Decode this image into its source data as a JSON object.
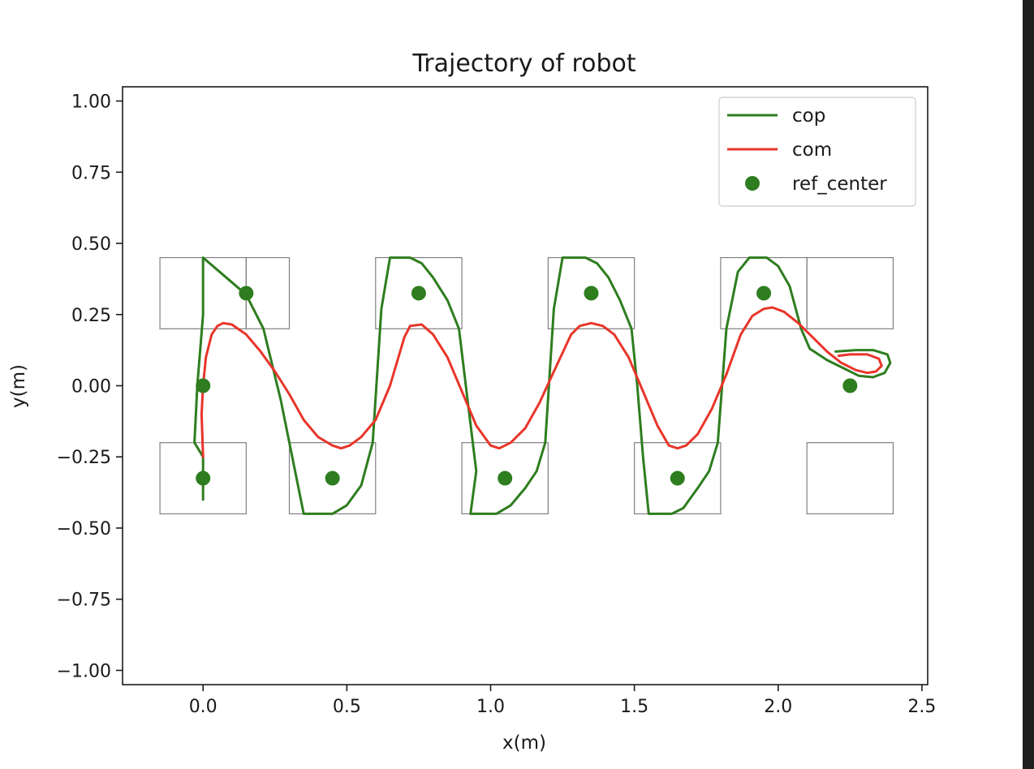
{
  "chart_data": {
    "type": "line",
    "title": "Trajectory of robot",
    "xlabel": "x(m)",
    "ylabel": "y(m)",
    "xlim": [
      -0.28,
      2.52
    ],
    "ylim": [
      -1.05,
      1.05
    ],
    "xticks": [
      0.0,
      0.5,
      1.0,
      1.5,
      2.0,
      2.5
    ],
    "xtick_labels": [
      "0.0",
      "0.5",
      "1.0",
      "1.5",
      "2.0",
      "2.5"
    ],
    "yticks": [
      1.0,
      0.75,
      0.5,
      0.25,
      0.0,
      -0.25,
      -0.5,
      -0.75,
      -1.0
    ],
    "ytick_labels": [
      "1.00",
      "0.75",
      "0.50",
      "0.25",
      "0.00",
      "−0.25",
      "−0.50",
      "−0.75",
      "−1.00"
    ],
    "grid": false,
    "legend_position": "top-right",
    "colors": {
      "cop": "#2e7d1f",
      "com": "#e8352a",
      "ref_center": "#2e7d1f",
      "footprint": "#808080"
    },
    "footprints": [
      {
        "x0": -0.15,
        "x1": 0.15,
        "y0": 0.2,
        "y1": 0.45
      },
      {
        "x0": 0.15,
        "x1": 0.3,
        "y0": 0.2,
        "y1": 0.45
      },
      {
        "x0": -0.15,
        "x1": 0.15,
        "y0": -0.45,
        "y1": -0.2
      },
      {
        "x0": 0.3,
        "x1": 0.6,
        "y0": -0.45,
        "y1": -0.2
      },
      {
        "x0": 0.6,
        "x1": 0.9,
        "y0": 0.2,
        "y1": 0.45
      },
      {
        "x0": 0.9,
        "x1": 1.2,
        "y0": -0.45,
        "y1": -0.2
      },
      {
        "x0": 1.2,
        "x1": 1.5,
        "y0": 0.2,
        "y1": 0.45
      },
      {
        "x0": 1.5,
        "x1": 1.8,
        "y0": -0.45,
        "y1": -0.2
      },
      {
        "x0": 1.8,
        "x1": 2.1,
        "y0": 0.2,
        "y1": 0.45
      },
      {
        "x0": 2.1,
        "x1": 2.4,
        "y0": 0.2,
        "y1": 0.45
      },
      {
        "x0": 2.1,
        "x1": 2.4,
        "y0": -0.45,
        "y1": -0.2
      }
    ],
    "series": [
      {
        "name": "cop",
        "style": "line",
        "points": [
          [
            0.0,
            -0.4
          ],
          [
            0.0,
            -0.25
          ],
          [
            -0.03,
            -0.2
          ],
          [
            -0.02,
            0.0
          ],
          [
            0.0,
            0.25
          ],
          [
            0.0,
            0.45
          ],
          [
            0.15,
            0.32
          ],
          [
            0.21,
            0.2
          ],
          [
            0.27,
            -0.05
          ],
          [
            0.32,
            -0.3
          ],
          [
            0.35,
            -0.45
          ],
          [
            0.45,
            -0.45
          ],
          [
            0.5,
            -0.42
          ],
          [
            0.55,
            -0.35
          ],
          [
            0.59,
            -0.2
          ],
          [
            0.62,
            0.27
          ],
          [
            0.65,
            0.45
          ],
          [
            0.72,
            0.45
          ],
          [
            0.76,
            0.43
          ],
          [
            0.8,
            0.38
          ],
          [
            0.85,
            0.3
          ],
          [
            0.89,
            0.2
          ],
          [
            0.92,
            -0.05
          ],
          [
            0.95,
            -0.3
          ],
          [
            0.93,
            -0.45
          ],
          [
            1.02,
            -0.45
          ],
          [
            1.07,
            -0.42
          ],
          [
            1.12,
            -0.36
          ],
          [
            1.16,
            -0.3
          ],
          [
            1.19,
            -0.2
          ],
          [
            1.22,
            0.27
          ],
          [
            1.25,
            0.45
          ],
          [
            1.33,
            0.45
          ],
          [
            1.37,
            0.43
          ],
          [
            1.41,
            0.38
          ],
          [
            1.45,
            0.3
          ],
          [
            1.49,
            0.2
          ],
          [
            1.51,
            0.0
          ],
          [
            1.53,
            -0.25
          ],
          [
            1.55,
            -0.45
          ],
          [
            1.63,
            -0.45
          ],
          [
            1.67,
            -0.43
          ],
          [
            1.72,
            -0.36
          ],
          [
            1.76,
            -0.3
          ],
          [
            1.79,
            -0.2
          ],
          [
            1.82,
            0.2
          ],
          [
            1.86,
            0.4
          ],
          [
            1.9,
            0.45
          ],
          [
            1.96,
            0.45
          ],
          [
            2.0,
            0.42
          ],
          [
            2.04,
            0.35
          ],
          [
            2.08,
            0.2
          ],
          [
            2.11,
            0.13
          ],
          [
            2.17,
            0.09
          ],
          [
            2.23,
            0.06
          ],
          [
            2.28,
            0.035
          ],
          [
            2.33,
            0.03
          ],
          [
            2.37,
            0.045
          ],
          [
            2.39,
            0.08
          ],
          [
            2.38,
            0.11
          ],
          [
            2.33,
            0.125
          ],
          [
            2.27,
            0.125
          ],
          [
            2.2,
            0.12
          ]
        ]
      },
      {
        "name": "com",
        "style": "line",
        "points": [
          [
            0.0,
            -0.25
          ],
          [
            -0.005,
            -0.1
          ],
          [
            0.0,
            0.0
          ],
          [
            0.01,
            0.1
          ],
          [
            0.03,
            0.18
          ],
          [
            0.05,
            0.21
          ],
          [
            0.07,
            0.22
          ],
          [
            0.1,
            0.215
          ],
          [
            0.15,
            0.18
          ],
          [
            0.2,
            0.12
          ],
          [
            0.25,
            0.05
          ],
          [
            0.3,
            -0.03
          ],
          [
            0.35,
            -0.12
          ],
          [
            0.4,
            -0.18
          ],
          [
            0.45,
            -0.21
          ],
          [
            0.48,
            -0.22
          ],
          [
            0.51,
            -0.21
          ],
          [
            0.55,
            -0.18
          ],
          [
            0.6,
            -0.12
          ],
          [
            0.65,
            0.0
          ],
          [
            0.7,
            0.17
          ],
          [
            0.72,
            0.21
          ],
          [
            0.76,
            0.215
          ],
          [
            0.8,
            0.18
          ],
          [
            0.85,
            0.1
          ],
          [
            0.9,
            -0.02
          ],
          [
            0.95,
            -0.14
          ],
          [
            1.0,
            -0.21
          ],
          [
            1.03,
            -0.22
          ],
          [
            1.07,
            -0.2
          ],
          [
            1.12,
            -0.15
          ],
          [
            1.17,
            -0.06
          ],
          [
            1.22,
            0.05
          ],
          [
            1.28,
            0.18
          ],
          [
            1.31,
            0.21
          ],
          [
            1.35,
            0.22
          ],
          [
            1.39,
            0.21
          ],
          [
            1.43,
            0.18
          ],
          [
            1.48,
            0.1
          ],
          [
            1.53,
            -0.02
          ],
          [
            1.58,
            -0.14
          ],
          [
            1.62,
            -0.21
          ],
          [
            1.65,
            -0.22
          ],
          [
            1.68,
            -0.21
          ],
          [
            1.72,
            -0.17
          ],
          [
            1.77,
            -0.08
          ],
          [
            1.82,
            0.04
          ],
          [
            1.87,
            0.18
          ],
          [
            1.91,
            0.245
          ],
          [
            1.95,
            0.27
          ],
          [
            1.98,
            0.275
          ],
          [
            2.02,
            0.26
          ],
          [
            2.07,
            0.22
          ],
          [
            2.12,
            0.17
          ],
          [
            2.17,
            0.12
          ],
          [
            2.22,
            0.08
          ],
          [
            2.27,
            0.055
          ],
          [
            2.31,
            0.045
          ],
          [
            2.34,
            0.05
          ],
          [
            2.36,
            0.07
          ],
          [
            2.35,
            0.095
          ],
          [
            2.31,
            0.11
          ],
          [
            2.25,
            0.11
          ],
          [
            2.21,
            0.105
          ]
        ]
      },
      {
        "name": "ref_center",
        "style": "markers",
        "points": [
          [
            0.15,
            0.325
          ],
          [
            0.0,
            0.0
          ],
          [
            0.0,
            -0.325
          ],
          [
            0.45,
            -0.325
          ],
          [
            0.75,
            0.325
          ],
          [
            1.05,
            -0.325
          ],
          [
            1.35,
            0.325
          ],
          [
            1.65,
            -0.325
          ],
          [
            1.95,
            0.325
          ],
          [
            2.25,
            0.0
          ]
        ]
      }
    ]
  }
}
